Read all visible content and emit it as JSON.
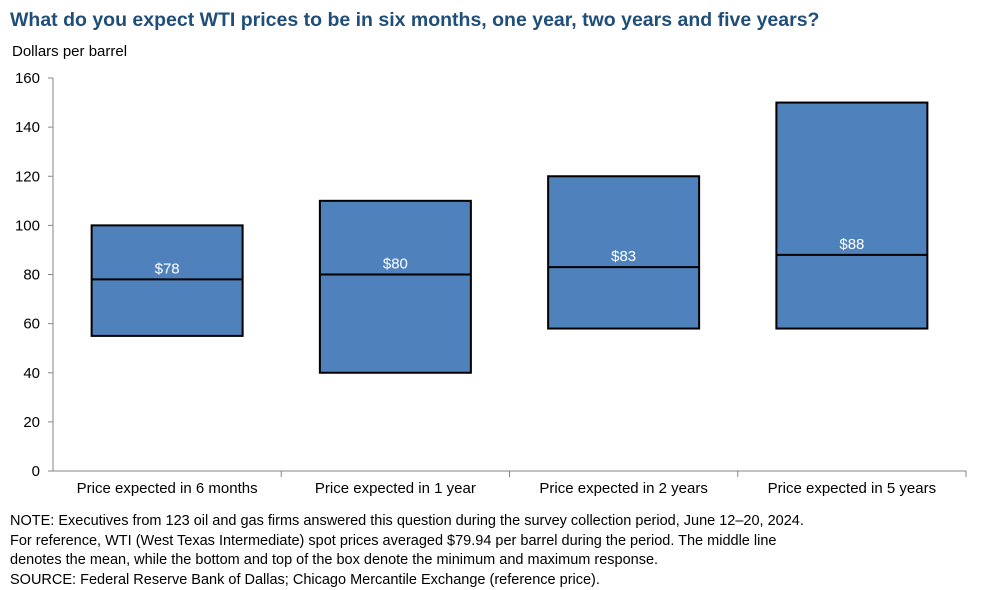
{
  "header": {
    "title": "What do you expect WTI prices to be in six months, one year, two years and five years?",
    "unit_label": "Dollars  per barrel"
  },
  "chart_data": {
    "type": "box",
    "title": "What do you expect WTI prices to be in six months, one year, two years and five years?",
    "ylabel": "Dollars per barrel",
    "ylim": [
      0,
      160
    ],
    "yticks": [
      0,
      20,
      40,
      60,
      80,
      100,
      120,
      140,
      160
    ],
    "grid": false,
    "categories": [
      "Price expected in 6 months",
      "Price expected in 1 year",
      "Price expected in 2 years",
      "Price expected in 5 years"
    ],
    "min": [
      55,
      40,
      58,
      58
    ],
    "max": [
      100,
      110,
      120,
      150
    ],
    "mean": [
      78,
      80,
      83,
      88
    ],
    "mean_labels": [
      "$78",
      "$80",
      "$83",
      "$88"
    ],
    "box_color": "#4f81bd"
  },
  "footer": {
    "note_lines": [
      "NOTE:  Executives  from  123  oil  and  gas  firms  answered  this  question  during  the  survey  collection  period,  June  12–20,  2024.",
      "For  reference,  WTI  (West  Texas  Intermediate)  spot  prices  averaged  $79.94  per  barrel  during  the  period.  The  middle  line",
      "denotes  the  mean,  while  the  bottom  and  top  of  the  box  denote  the  minimum  and  maximum  response.",
      "SOURCE:  Federal  Reserve  Bank  of  Dallas;  Chicago  Mercantile  Exchange  (reference  price)."
    ]
  }
}
